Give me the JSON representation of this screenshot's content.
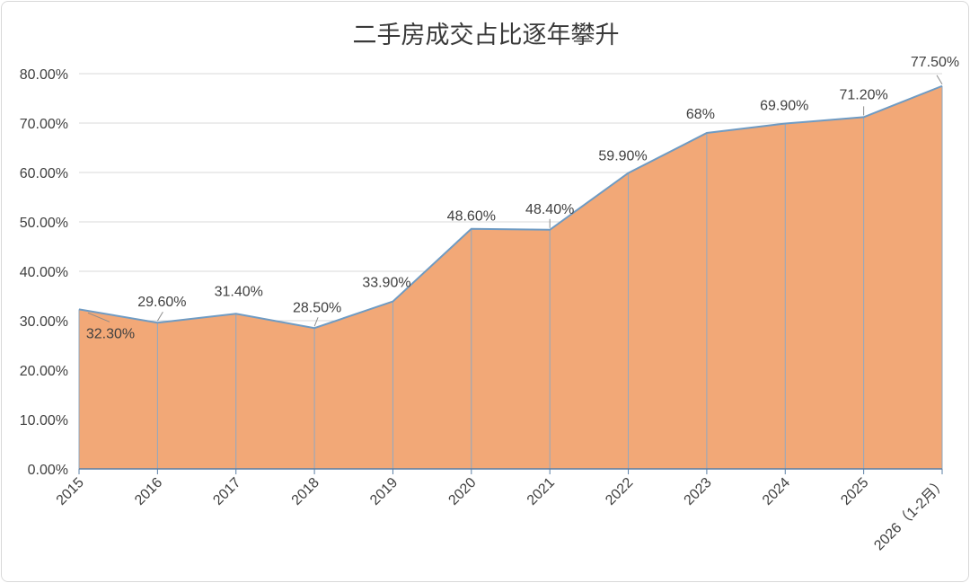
{
  "chart_data": {
    "type": "area",
    "title": "二手房成交占比逐年攀升",
    "xlabel": "",
    "ylabel": "",
    "categories": [
      "2015",
      "2016",
      "2017",
      "2018",
      "2019",
      "2020",
      "2021",
      "2022",
      "2023",
      "2024",
      "2025",
      "2026（1-2月）"
    ],
    "series": [
      {
        "values": [
          32.3,
          29.6,
          31.4,
          28.5,
          33.9,
          48.6,
          48.4,
          59.9,
          68,
          69.9,
          71.2,
          77.5
        ],
        "data_labels": [
          "32.30%",
          "29.60%",
          "31.40%",
          "28.50%",
          "33.90%",
          "48.60%",
          "48.40%",
          "59.90%",
          "68%",
          "69.90%",
          "71.20%",
          "77.50%"
        ]
      }
    ],
    "ylim": [
      0,
      80
    ],
    "yticks": [
      "0.00%",
      "10.00%",
      "20.00%",
      "30.00%",
      "40.00%",
      "50.00%",
      "60.00%",
      "70.00%",
      "80.00%"
    ],
    "grid": true,
    "legend": "none",
    "colors": {
      "fill": "#f2a877",
      "line": "#6f9bc3",
      "grid": "#d9d9d9",
      "drop_line": "#8fa9c2"
    }
  }
}
